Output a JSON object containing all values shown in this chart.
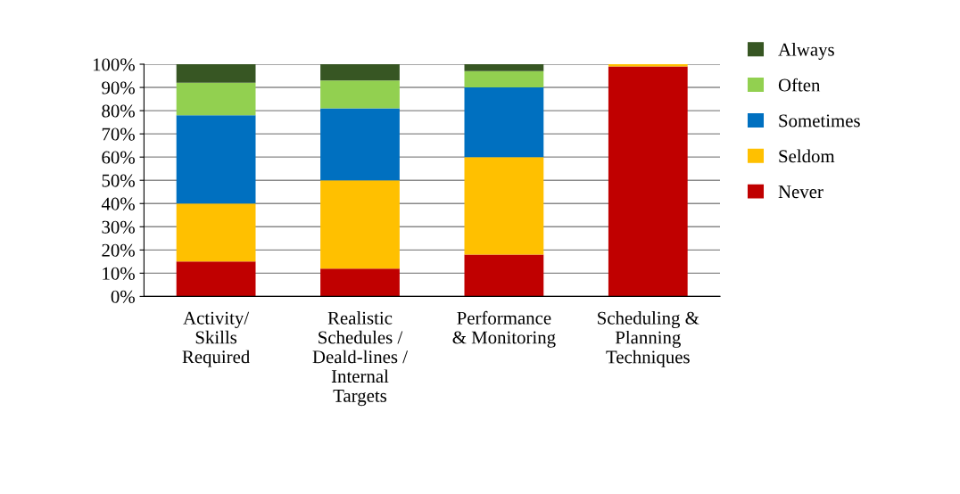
{
  "chart_data": {
    "type": "bar",
    "stacked": true,
    "categories": [
      "Activity/\nSkills\nRequired",
      "Realistic\nSchedules /\nDeald-lines /\nInternal\nTargets",
      "Performance\n& Monitoring",
      "Scheduling &\nPlanning\nTechniques"
    ],
    "series": [
      {
        "name": "Never",
        "color": "#c00000",
        "values": [
          15,
          12,
          18,
          99
        ]
      },
      {
        "name": "Seldom",
        "color": "#ffc000",
        "values": [
          25,
          38,
          42,
          1
        ]
      },
      {
        "name": "Sometimes",
        "color": "#0070c0",
        "values": [
          38,
          31,
          30,
          0
        ]
      },
      {
        "name": "Often",
        "color": "#92d050",
        "values": [
          14,
          12,
          7,
          0
        ]
      },
      {
        "name": "Always",
        "color": "#375623",
        "values": [
          8,
          7,
          3,
          0
        ]
      }
    ],
    "ylim": [
      0,
      100
    ],
    "yticks": [
      {
        "value": 0,
        "label": "0%"
      },
      {
        "value": 10,
        "label": "10%"
      },
      {
        "value": 20,
        "label": "20%"
      },
      {
        "value": 30,
        "label": "30%"
      },
      {
        "value": 40,
        "label": "40%"
      },
      {
        "value": 50,
        "label": "50%"
      },
      {
        "value": 60,
        "label": "60%"
      },
      {
        "value": 70,
        "label": "70%"
      },
      {
        "value": 80,
        "label": "80%"
      },
      {
        "value": 90,
        "label": "90%"
      },
      {
        "value": 100,
        "label": "100%"
      }
    ],
    "grid": "y",
    "legend": "right"
  }
}
